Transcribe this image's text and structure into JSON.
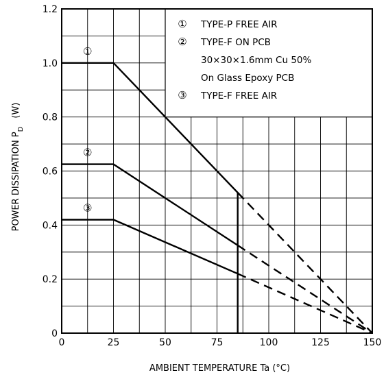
{
  "chart_data": {
    "type": "line",
    "xlabel": "AMBIENT TEMPERATURE   Ta   (°C)",
    "ylabel": {
      "main": "POWER DISSIPATION  P",
      "subscript": "D",
      "unit": "(W)"
    },
    "xlim": [
      0,
      150
    ],
    "ylim": [
      0,
      1.2
    ],
    "x_ticks": [
      "0",
      "25",
      "50",
      "75",
      "100",
      "125",
      "150"
    ],
    "y_ticks": [
      "0",
      "0.2",
      "0.4",
      "0.6",
      "0.8",
      "1.0",
      "1.2"
    ],
    "grid": true,
    "legend_position": "top-right",
    "legend": [
      {
        "marker": "①",
        "lines": [
          "TYPE-P FREE AIR"
        ]
      },
      {
        "marker": "②",
        "lines": [
          "TYPE-F ON PCB",
          "30×30×1.6mm Cu 50%",
          "On Glass Epoxy PCB"
        ]
      },
      {
        "marker": "③",
        "lines": [
          "TYPE-F FREE AIR"
        ]
      }
    ],
    "series": [
      {
        "marker": "①",
        "solid": [
          [
            0,
            1.0
          ],
          [
            25,
            1.0
          ],
          [
            85,
            0.52
          ],
          [
            85,
            0
          ]
        ],
        "dashed": [
          [
            85,
            0.52
          ],
          [
            150,
            0
          ]
        ]
      },
      {
        "marker": "②",
        "solid": [
          [
            0,
            0.625
          ],
          [
            25,
            0.625
          ],
          [
            85,
            0.325
          ]
        ],
        "dashed": [
          [
            85,
            0.325
          ],
          [
            150,
            0
          ]
        ]
      },
      {
        "marker": "③",
        "solid": [
          [
            0,
            0.42
          ],
          [
            25,
            0.42
          ],
          [
            85,
            0.22
          ]
        ],
        "dashed": [
          [
            85,
            0.22
          ],
          [
            150,
            0
          ]
        ]
      }
    ]
  }
}
